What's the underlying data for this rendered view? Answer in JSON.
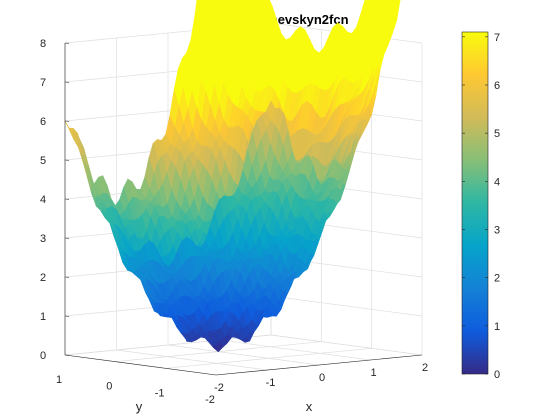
{
  "chart_data": {
    "type": "surface",
    "function": "bohachevskyn2fcn",
    "title": "bohachevskyn2fcn",
    "xlabel": "x",
    "ylabel": "y",
    "zlabel": "",
    "xlim": [
      -2,
      2
    ],
    "ylim": [
      -2,
      1
    ],
    "zlim": [
      0,
      8
    ],
    "x_ticks": [
      "-2",
      "-1",
      "0",
      "1",
      "2"
    ],
    "y_ticks": [
      "1",
      "0",
      "-1",
      "-2"
    ],
    "z_ticks": [
      "0",
      "1",
      "2",
      "3",
      "4",
      "5",
      "6",
      "7",
      "8"
    ],
    "grid": true,
    "colormap": "parula",
    "colorbar": {
      "limits": [
        0,
        7.1
      ],
      "ticks": [
        "0",
        "1",
        "2",
        "3",
        "4",
        "5",
        "6",
        "7"
      ],
      "placement": "right"
    }
  }
}
